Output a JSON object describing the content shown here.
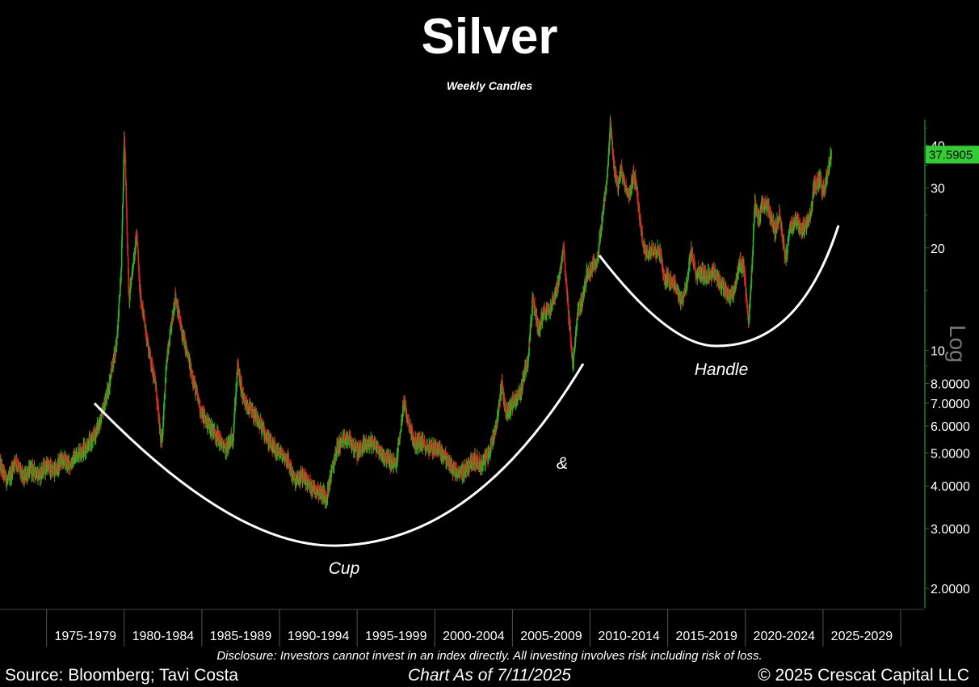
{
  "header": {
    "title": "Silver",
    "subtitle": "Weekly Candles"
  },
  "footer": {
    "disclosure": "Disclosure: Investors cannot invest in an index directly. All investing involves risk including risk of loss.",
    "source": "Source: Bloomberg; Tavi Costa",
    "as_of": "Chart As of 7/11/2025",
    "copyright": "© 2025 Crescat Capital LLC"
  },
  "colors": {
    "background": "#000000",
    "up_candle": "#22bb22",
    "down_candle": "#dd2222",
    "last_price_tag": "#33cc33",
    "axis_line": "#1f7a1f",
    "annotation": "#ffffff"
  },
  "chart_data": {
    "type": "candlestick",
    "title": "Silver",
    "subtitle": "Weekly Candles",
    "x_type": "year",
    "x_range": [
      1972.0,
      2030.0
    ],
    "y_scale": "log",
    "y_label": "Log",
    "ylim": [
      1.8,
      47
    ],
    "y_ticks": [
      {
        "value": 40,
        "label": "40"
      },
      {
        "value": 30,
        "label": "30"
      },
      {
        "value": 20,
        "label": "20"
      },
      {
        "value": 10,
        "label": "10"
      },
      {
        "value": 8,
        "label": "8.0000"
      },
      {
        "value": 7,
        "label": "7.0000"
      },
      {
        "value": 6,
        "label": "6.0000"
      },
      {
        "value": 5,
        "label": "5.0000"
      },
      {
        "value": 4,
        "label": "4.0000"
      },
      {
        "value": 3,
        "label": "3.0000"
      },
      {
        "value": 2,
        "label": "2.0000"
      }
    ],
    "x_categories": [
      {
        "label": "1975-1979",
        "start": 1975,
        "end": 1980
      },
      {
        "label": "1980-1984",
        "start": 1980,
        "end": 1985
      },
      {
        "label": "1985-1989",
        "start": 1985,
        "end": 1990
      },
      {
        "label": "1990-1994",
        "start": 1990,
        "end": 1995
      },
      {
        "label": "1995-1999",
        "start": 1995,
        "end": 2000
      },
      {
        "label": "2000-2004",
        "start": 2000,
        "end": 2005
      },
      {
        "label": "2005-2009",
        "start": 2005,
        "end": 2010
      },
      {
        "label": "2010-2014",
        "start": 2010,
        "end": 2015
      },
      {
        "label": "2015-2019",
        "start": 2015,
        "end": 2020
      },
      {
        "label": "2020-2024",
        "start": 2020,
        "end": 2025
      },
      {
        "label": "2025-2029",
        "start": 2025,
        "end": 2030
      }
    ],
    "last_price": {
      "value": 37.59,
      "label": "37.5905"
    },
    "price_path": [
      [
        1972.0,
        4.6
      ],
      [
        1972.5,
        4.1
      ],
      [
        1973.0,
        4.8
      ],
      [
        1973.5,
        4.2
      ],
      [
        1974.0,
        4.5
      ],
      [
        1974.5,
        4.3
      ],
      [
        1975.0,
        4.6
      ],
      [
        1975.5,
        4.4
      ],
      [
        1976.0,
        4.8
      ],
      [
        1976.5,
        4.6
      ],
      [
        1977.0,
        5.0
      ],
      [
        1977.5,
        5.2
      ],
      [
        1978.0,
        5.5
      ],
      [
        1978.5,
        6.3
      ],
      [
        1979.0,
        7.8
      ],
      [
        1979.5,
        10.5
      ],
      [
        1979.8,
        17.0
      ],
      [
        1980.0,
        44.0
      ],
      [
        1980.1,
        30.0
      ],
      [
        1980.3,
        14.0
      ],
      [
        1980.5,
        17.0
      ],
      [
        1980.8,
        22.0
      ],
      [
        1981.0,
        15.0
      ],
      [
        1981.5,
        10.5
      ],
      [
        1982.0,
        8.0
      ],
      [
        1982.4,
        5.2
      ],
      [
        1982.7,
        9.0
      ],
      [
        1983.0,
        11.5
      ],
      [
        1983.3,
        14.5
      ],
      [
        1983.6,
        12.0
      ],
      [
        1984.0,
        10.0
      ],
      [
        1984.5,
        8.0
      ],
      [
        1985.0,
        6.5
      ],
      [
        1985.5,
        6.0
      ],
      [
        1986.0,
        5.6
      ],
      [
        1986.5,
        5.1
      ],
      [
        1987.0,
        5.6
      ],
      [
        1987.3,
        9.0
      ],
      [
        1987.7,
        7.0
      ],
      [
        1988.0,
        6.8
      ],
      [
        1988.5,
        6.3
      ],
      [
        1989.0,
        5.8
      ],
      [
        1989.5,
        5.2
      ],
      [
        1990.0,
        5.0
      ],
      [
        1990.5,
        4.8
      ],
      [
        1991.0,
        4.1
      ],
      [
        1991.5,
        4.3
      ],
      [
        1992.0,
        4.0
      ],
      [
        1992.5,
        3.9
      ],
      [
        1993.0,
        3.7
      ],
      [
        1993.4,
        4.5
      ],
      [
        1993.7,
        5.2
      ],
      [
        1994.0,
        5.4
      ],
      [
        1994.5,
        5.5
      ],
      [
        1995.0,
        5.0
      ],
      [
        1995.5,
        5.3
      ],
      [
        1996.0,
        5.4
      ],
      [
        1996.5,
        5.0
      ],
      [
        1997.0,
        4.8
      ],
      [
        1997.5,
        4.6
      ],
      [
        1998.0,
        7.0
      ],
      [
        1998.3,
        6.2
      ],
      [
        1998.7,
        5.3
      ],
      [
        1999.0,
        5.4
      ],
      [
        1999.5,
        5.2
      ],
      [
        2000.0,
        5.2
      ],
      [
        2000.5,
        5.0
      ],
      [
        2001.0,
        4.6
      ],
      [
        2001.5,
        4.3
      ],
      [
        2002.0,
        4.5
      ],
      [
        2002.5,
        4.8
      ],
      [
        2003.0,
        4.6
      ],
      [
        2003.5,
        5.0
      ],
      [
        2004.0,
        6.2
      ],
      [
        2004.3,
        8.0
      ],
      [
        2004.6,
        6.5
      ],
      [
        2005.0,
        7.0
      ],
      [
        2005.5,
        7.5
      ],
      [
        2006.0,
        9.5
      ],
      [
        2006.3,
        14.0
      ],
      [
        2006.7,
        11.5
      ],
      [
        2007.0,
        13.0
      ],
      [
        2007.5,
        13.5
      ],
      [
        2008.0,
        16.0
      ],
      [
        2008.3,
        20.0
      ],
      [
        2008.6,
        13.0
      ],
      [
        2008.9,
        9.0
      ],
      [
        2009.2,
        13.0
      ],
      [
        2009.5,
        14.0
      ],
      [
        2009.8,
        17.0
      ],
      [
        2010.0,
        17.0
      ],
      [
        2010.5,
        19.0
      ],
      [
        2010.8,
        25.0
      ],
      [
        2011.1,
        32.0
      ],
      [
        2011.3,
        46.0
      ],
      [
        2011.5,
        36.0
      ],
      [
        2011.8,
        30.0
      ],
      [
        2012.0,
        34.0
      ],
      [
        2012.5,
        28.0
      ],
      [
        2012.8,
        33.0
      ],
      [
        2013.0,
        30.0
      ],
      [
        2013.3,
        22.0
      ],
      [
        2013.6,
        19.0
      ],
      [
        2014.0,
        20.0
      ],
      [
        2014.5,
        19.5
      ],
      [
        2014.8,
        16.0
      ],
      [
        2015.0,
        16.5
      ],
      [
        2015.5,
        15.5
      ],
      [
        2015.9,
        14.0
      ],
      [
        2016.2,
        15.5
      ],
      [
        2016.5,
        19.5
      ],
      [
        2016.8,
        17.0
      ],
      [
        2017.0,
        17.0
      ],
      [
        2017.5,
        16.5
      ],
      [
        2018.0,
        17.0
      ],
      [
        2018.5,
        15.5
      ],
      [
        2018.9,
        14.5
      ],
      [
        2019.3,
        15.0
      ],
      [
        2019.6,
        18.0
      ],
      [
        2019.9,
        17.5
      ],
      [
        2020.2,
        12.0
      ],
      [
        2020.4,
        17.0
      ],
      [
        2020.6,
        27.0
      ],
      [
        2020.9,
        24.0
      ],
      [
        2021.1,
        27.0
      ],
      [
        2021.5,
        26.0
      ],
      [
        2021.9,
        22.5
      ],
      [
        2022.2,
        25.0
      ],
      [
        2022.6,
        18.5
      ],
      [
        2022.9,
        23.0
      ],
      [
        2023.3,
        24.0
      ],
      [
        2023.6,
        22.5
      ],
      [
        2023.9,
        23.5
      ],
      [
        2024.2,
        24.5
      ],
      [
        2024.4,
        30.5
      ],
      [
        2024.8,
        31.5
      ],
      [
        2025.0,
        29.5
      ],
      [
        2025.3,
        33.0
      ],
      [
        2025.45,
        36.5
      ],
      [
        2025.53,
        37.59
      ]
    ],
    "annotations": [
      {
        "text": "Cup"
      },
      {
        "text": "&"
      },
      {
        "text": "Handle"
      }
    ]
  }
}
